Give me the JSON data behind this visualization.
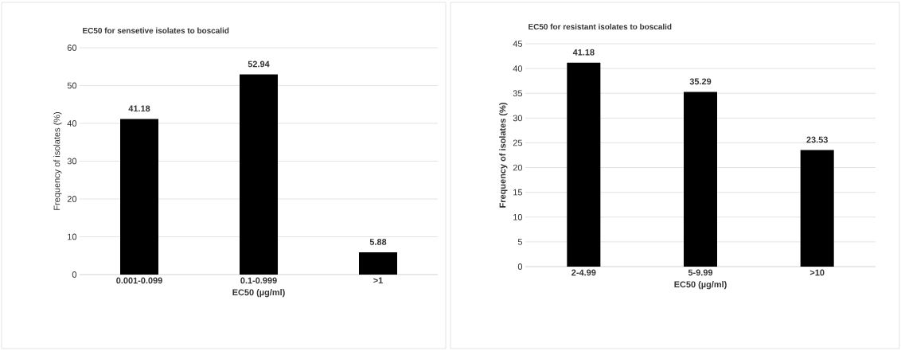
{
  "chart_data": [
    {
      "type": "bar",
      "title": "EC50 for sensetive isolates to boscalid",
      "xlabel": "EC50 (µg/ml)",
      "ylabel": "Frequency of isolates (%)",
      "categories": [
        "0.001-0.099",
        "0.1-0.999",
        ">1"
      ],
      "values": [
        41.18,
        52.94,
        5.88
      ],
      "color": "#000000",
      "ylim": [
        0,
        60
      ],
      "yticks": [
        0,
        10,
        20,
        30,
        40,
        50,
        60
      ],
      "grid": "y",
      "data_labels": true
    },
    {
      "type": "bar",
      "title": "EC50 for resistant isolates to boscalid",
      "xlabel": "EC50 (µg/ml)",
      "ylabel": "Frequency of isolates (%)",
      "categories": [
        "2-4.99",
        "5-9.99",
        ">10"
      ],
      "values": [
        41.18,
        35.29,
        23.53
      ],
      "color": "#000000",
      "ylim": [
        0,
        45
      ],
      "yticks": [
        0,
        5,
        10,
        15,
        20,
        25,
        30,
        35,
        40,
        45
      ],
      "grid": "y",
      "data_labels": true
    }
  ]
}
